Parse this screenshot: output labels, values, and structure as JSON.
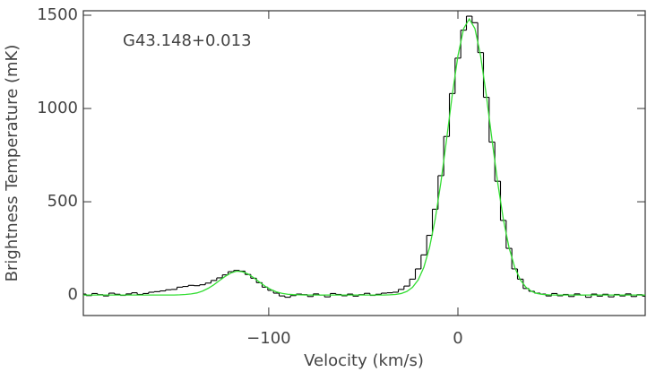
{
  "chart_data": {
    "type": "line",
    "annotation": "G43.148+0.013",
    "xlabel": "Velocity (km/s)",
    "ylabel": "Brightness Temperature (mK)",
    "xlim": [
      -198,
      99
    ],
    "ylim": [
      -110,
      1524
    ],
    "xticks": [
      {
        "value": -100,
        "label": "−100"
      },
      0
    ],
    "yticks": [
      0,
      500,
      1000,
      1500
    ],
    "x": [
      -198,
      -195,
      -192,
      -189,
      -186,
      -183,
      -180,
      -177,
      -174,
      -171,
      -168,
      -165,
      -162,
      -159,
      -156,
      -153,
      -150,
      -147,
      -144,
      -141,
      -138,
      -135,
      -132,
      -129,
      -126,
      -123,
      -120,
      -117,
      -114,
      -111,
      -108,
      -105,
      -102,
      -99,
      -96,
      -93,
      -90,
      -87,
      -84,
      -81,
      -78,
      -75,
      -72,
      -69,
      -66,
      -63,
      -60,
      -57,
      -54,
      -51,
      -48,
      -45,
      -42,
      -39,
      -36,
      -33,
      -30,
      -27,
      -24,
      -21,
      -18,
      -15,
      -12,
      -9,
      -6,
      -3,
      0,
      3,
      6,
      9,
      12,
      15,
      18,
      21,
      24,
      27,
      30,
      33,
      36,
      39,
      42,
      45,
      48,
      51,
      54,
      57,
      60,
      63,
      66,
      69,
      72,
      75,
      78,
      81,
      84,
      87,
      90,
      93,
      96,
      99
    ],
    "series": [
      {
        "color": "#000000",
        "style": "step",
        "values": [
          5,
          -3,
          8,
          2,
          -5,
          10,
          4,
          -2,
          6,
          12,
          3,
          8,
          15,
          18,
          22,
          28,
          30,
          42,
          46,
          52,
          50,
          55,
          64,
          78,
          92,
          108,
          125,
          132,
          128,
          110,
          90,
          66,
          42,
          25,
          10,
          -5,
          -12,
          -3,
          5,
          2,
          -8,
          6,
          0,
          -10,
          8,
          3,
          -4,
          5,
          -6,
          2,
          9,
          -2,
          4,
          10,
          12,
          15,
          30,
          48,
          85,
          140,
          215,
          320,
          460,
          640,
          850,
          1080,
          1270,
          1420,
          1495,
          1460,
          1300,
          1060,
          820,
          610,
          400,
          250,
          140,
          85,
          35,
          20,
          10,
          5,
          -5,
          8,
          -4,
          3,
          -8,
          6,
          0,
          -12,
          5,
          -6,
          4,
          -10,
          3,
          -5,
          6,
          -8,
          2,
          -6
        ]
      },
      {
        "color": "#33dd33",
        "style": "line",
        "values": [
          0,
          0,
          0,
          0,
          0,
          0,
          0,
          0,
          0,
          0,
          0,
          0,
          0,
          0,
          0,
          0,
          0,
          1,
          3,
          6,
          11,
          21,
          36,
          55,
          78,
          100,
          118,
          128,
          125,
          113,
          93,
          70,
          48,
          30,
          17,
          9,
          4,
          2,
          1,
          0,
          0,
          0,
          0,
          0,
          0,
          0,
          0,
          0,
          0,
          0,
          0,
          0,
          0,
          0,
          1,
          3,
          8,
          19,
          41,
          81,
          149,
          255,
          407,
          604,
          834,
          1072,
          1282,
          1428,
          1480,
          1428,
          1282,
          1072,
          834,
          604,
          407,
          255,
          149,
          81,
          41,
          19,
          8,
          3,
          1,
          0,
          0,
          0,
          0,
          0,
          0,
          0,
          0,
          0,
          0,
          0,
          0,
          0,
          0,
          0,
          0,
          0
        ]
      }
    ]
  }
}
